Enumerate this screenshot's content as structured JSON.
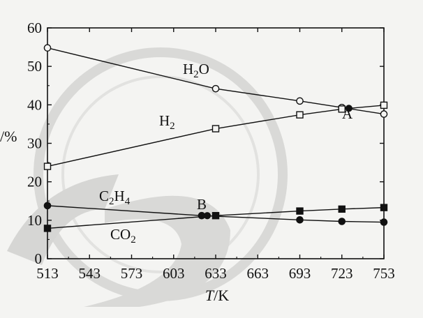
{
  "chart_data": {
    "type": "line",
    "title": "",
    "xlabel_italic": "T",
    "xlabel_unit": "/K",
    "ylabel": "/%",
    "xlim": [
      513,
      753
    ],
    "ylim": [
      0,
      60
    ],
    "xticks": [
      "513",
      "543",
      "573",
      "603",
      "633",
      "663",
      "693",
      "723",
      "753"
    ],
    "yticks": [
      "0",
      "10",
      "20",
      "30",
      "40",
      "50",
      "60"
    ],
    "grid": false,
    "series": [
      {
        "name": "H2O",
        "label_base": "H",
        "label_sub": "2",
        "label_tail": "O",
        "marker": "circle-open",
        "x": [
          513,
          633,
          693,
          723,
          753
        ],
        "y": [
          54.8,
          44.2,
          41.0,
          39.3,
          37.6
        ]
      },
      {
        "name": "H2",
        "label_base": "H",
        "label_sub": "2",
        "label_tail": "",
        "marker": "square-open",
        "x": [
          513,
          633,
          693,
          723,
          753
        ],
        "y": [
          24.0,
          33.8,
          37.4,
          38.9,
          39.9
        ]
      },
      {
        "name": "C2H4",
        "label_base": "C",
        "label_sub": "2",
        "label_tail": "H",
        "label_sub2": "4",
        "marker": "circle-filled",
        "x": [
          513,
          623,
          693,
          723,
          753
        ],
        "y": [
          13.8,
          11.2,
          10.1,
          9.7,
          9.5
        ]
      },
      {
        "name": "CO2",
        "label_base": "CO",
        "label_sub": "2",
        "label_tail": "",
        "marker": "square-filled",
        "x": [
          513,
          633,
          693,
          723,
          753
        ],
        "y": [
          7.9,
          11.2,
          12.4,
          12.9,
          13.3
        ]
      }
    ],
    "annotations": [
      {
        "text": "A",
        "x": 728,
        "y": 39.1
      },
      {
        "text": "B",
        "x": 627,
        "y": 11.2
      }
    ]
  }
}
